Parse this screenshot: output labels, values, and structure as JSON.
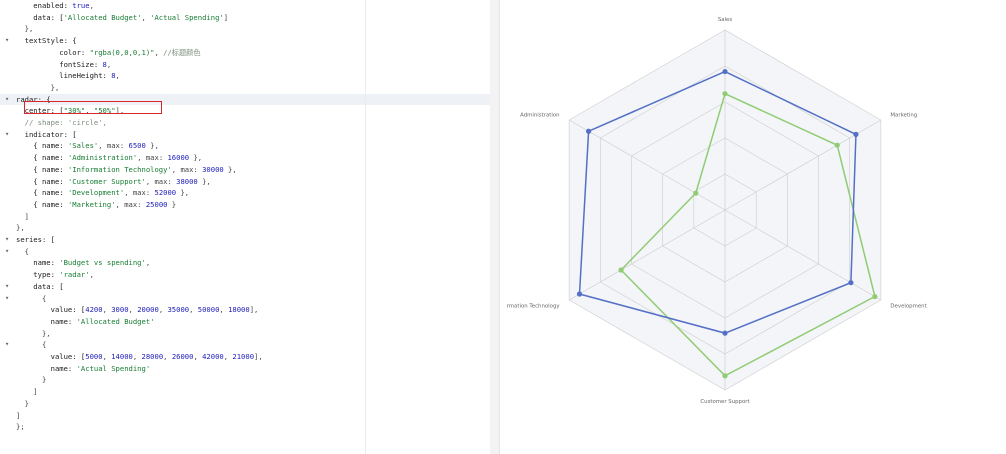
{
  "editor": {
    "lines": [
      {
        "fold": "",
        "tokens": [
          [
            "key",
            "    enabled: "
          ],
          [
            "bool",
            "true"
          ],
          [
            "pun",
            ","
          ]
        ]
      },
      {
        "fold": "",
        "tokens": [
          [
            "key",
            "    data: ["
          ],
          [
            "str",
            "'Allocated Budget'"
          ],
          [
            "pun",
            ", "
          ],
          [
            "str",
            "'Actual Spending'"
          ],
          [
            "pun",
            "]"
          ]
        ]
      },
      {
        "fold": "",
        "tokens": [
          [
            "pun",
            "  },"
          ]
        ]
      },
      {
        "fold": "▾",
        "tokens": [
          [
            "key",
            "  textStyle: {"
          ]
        ]
      },
      {
        "fold": "",
        "tokens": [
          [
            "key",
            "          color: "
          ],
          [
            "str",
            "\"rgba(0,0,0,1)\""
          ],
          [
            "pun",
            ", "
          ],
          [
            "com",
            "//标题颜色"
          ]
        ]
      },
      {
        "fold": "",
        "tokens": [
          [
            "key",
            "          fontSize: "
          ],
          [
            "num",
            "8"
          ],
          [
            "pun",
            ","
          ]
        ]
      },
      {
        "fold": "",
        "tokens": [
          [
            "key",
            "          lineHeight: "
          ],
          [
            "num",
            "8"
          ],
          [
            "pun",
            ","
          ]
        ]
      },
      {
        "fold": "",
        "tokens": [
          [
            "pun",
            "        },"
          ]
        ]
      },
      {
        "fold": "▾",
        "tokens": [
          [
            "key",
            "radar: {"
          ]
        ]
      },
      {
        "fold": "",
        "tokens": [
          [
            "key",
            "  center: ["
          ],
          [
            "str",
            "\"30%\""
          ],
          [
            "pun",
            ", "
          ],
          [
            "str",
            "\"50%\""
          ],
          [
            "pun",
            "],"
          ]
        ]
      },
      {
        "fold": "",
        "tokens": [
          [
            "com",
            "  // shape: 'circle',"
          ]
        ]
      },
      {
        "fold": "▾",
        "tokens": [
          [
            "key",
            "  indicator: ["
          ]
        ]
      },
      {
        "fold": "",
        "tokens": [
          [
            "key",
            "    { name: "
          ],
          [
            "str",
            "'Sales'"
          ],
          [
            "pun",
            ", max: "
          ],
          [
            "num",
            "6500"
          ],
          [
            "pun",
            " },"
          ]
        ]
      },
      {
        "fold": "",
        "tokens": [
          [
            "key",
            "    { name: "
          ],
          [
            "str",
            "'Administration'"
          ],
          [
            "pun",
            ", max: "
          ],
          [
            "num",
            "16000"
          ],
          [
            "pun",
            " },"
          ]
        ]
      },
      {
        "fold": "",
        "tokens": [
          [
            "key",
            "    { name: "
          ],
          [
            "str",
            "'Information Technology'"
          ],
          [
            "pun",
            ", max: "
          ],
          [
            "num",
            "30000"
          ],
          [
            "pun",
            " },"
          ]
        ]
      },
      {
        "fold": "",
        "tokens": [
          [
            "key",
            "    { name: "
          ],
          [
            "str",
            "'Customer Support'"
          ],
          [
            "pun",
            ", max: "
          ],
          [
            "num",
            "38000"
          ],
          [
            "pun",
            " },"
          ]
        ]
      },
      {
        "fold": "",
        "tokens": [
          [
            "key",
            "    { name: "
          ],
          [
            "str",
            "'Development'"
          ],
          [
            "pun",
            ", max: "
          ],
          [
            "num",
            "52000"
          ],
          [
            "pun",
            " },"
          ]
        ]
      },
      {
        "fold": "",
        "tokens": [
          [
            "key",
            "    { name: "
          ],
          [
            "str",
            "'Marketing'"
          ],
          [
            "pun",
            ", max: "
          ],
          [
            "num",
            "25000"
          ],
          [
            "pun",
            " }"
          ]
        ]
      },
      {
        "fold": "",
        "tokens": [
          [
            "pun",
            "  ]"
          ]
        ]
      },
      {
        "fold": "",
        "tokens": [
          [
            "pun",
            "},"
          ]
        ]
      },
      {
        "fold": "▾",
        "tokens": [
          [
            "key",
            "series: ["
          ]
        ]
      },
      {
        "fold": "▾",
        "tokens": [
          [
            "pun",
            "  {"
          ]
        ]
      },
      {
        "fold": "",
        "tokens": [
          [
            "key",
            "    name: "
          ],
          [
            "str",
            "'Budget vs spending'"
          ],
          [
            "pun",
            ","
          ]
        ]
      },
      {
        "fold": "",
        "tokens": [
          [
            "key",
            "    type: "
          ],
          [
            "str",
            "'radar'"
          ],
          [
            "pun",
            ","
          ]
        ]
      },
      {
        "fold": "▾",
        "tokens": [
          [
            "key",
            "    data: ["
          ]
        ]
      },
      {
        "fold": "▾",
        "tokens": [
          [
            "pun",
            "      {"
          ]
        ]
      },
      {
        "fold": "",
        "tokens": [
          [
            "key",
            "        value: ["
          ],
          [
            "num",
            "4200"
          ],
          [
            "pun",
            ", "
          ],
          [
            "num",
            "3000"
          ],
          [
            "pun",
            ", "
          ],
          [
            "num",
            "20000"
          ],
          [
            "pun",
            ", "
          ],
          [
            "num",
            "35000"
          ],
          [
            "pun",
            ", "
          ],
          [
            "num",
            "50000"
          ],
          [
            "pun",
            ", "
          ],
          [
            "num",
            "18000"
          ],
          [
            "pun",
            "],"
          ]
        ]
      },
      {
        "fold": "",
        "tokens": [
          [
            "key",
            "        name: "
          ],
          [
            "str",
            "'Allocated Budget'"
          ]
        ]
      },
      {
        "fold": "",
        "tokens": [
          [
            "pun",
            "      },"
          ]
        ]
      },
      {
        "fold": "▾",
        "tokens": [
          [
            "pun",
            "      {"
          ]
        ]
      },
      {
        "fold": "",
        "tokens": [
          [
            "key",
            "        value: ["
          ],
          [
            "num",
            "5000"
          ],
          [
            "pun",
            ", "
          ],
          [
            "num",
            "14000"
          ],
          [
            "pun",
            ", "
          ],
          [
            "num",
            "28000"
          ],
          [
            "pun",
            ", "
          ],
          [
            "num",
            "26000"
          ],
          [
            "pun",
            ", "
          ],
          [
            "num",
            "42000"
          ],
          [
            "pun",
            ", "
          ],
          [
            "num",
            "21000"
          ],
          [
            "pun",
            "],"
          ]
        ]
      },
      {
        "fold": "",
        "tokens": [
          [
            "key",
            "        name: "
          ],
          [
            "str",
            "'Actual Spending'"
          ]
        ]
      },
      {
        "fold": "",
        "tokens": [
          [
            "pun",
            "      }"
          ]
        ]
      },
      {
        "fold": "",
        "tokens": [
          [
            "pun",
            "    ]"
          ]
        ]
      },
      {
        "fold": "",
        "tokens": [
          [
            "pun",
            "  }"
          ]
        ]
      },
      {
        "fold": "",
        "tokens": [
          [
            "pun",
            "]"
          ]
        ]
      },
      {
        "fold": "",
        "tokens": [
          [
            "pun",
            "};"
          ]
        ]
      }
    ],
    "active_line": 8,
    "highlighted_line": 9
  },
  "chart_data": {
    "type": "radar",
    "indicators": [
      {
        "name": "Sales",
        "max": 6500
      },
      {
        "name": "Administration",
        "max": 16000
      },
      {
        "name": "Information Technology",
        "max": 30000
      },
      {
        "name": "Customer Support",
        "max": 38000
      },
      {
        "name": "Development",
        "max": 52000
      },
      {
        "name": "Marketing",
        "max": 25000
      }
    ],
    "display_labels": [
      "Sales",
      "Administration",
      "rmation Technology",
      "Customer Support",
      "Development",
      "Marketing"
    ],
    "series": [
      {
        "name": "Allocated Budget",
        "values": [
          4200,
          3000,
          20000,
          35000,
          50000,
          18000
        ],
        "color": "#91cc75"
      },
      {
        "name": "Actual Spending",
        "values": [
          5000,
          14000,
          28000,
          26000,
          42000,
          21000
        ],
        "color": "#5470c6"
      }
    ],
    "split_number": 5,
    "split_area_colors": [
      "#ffffff",
      "#f3f5f9"
    ],
    "axis_line_color": "#cccccc"
  }
}
